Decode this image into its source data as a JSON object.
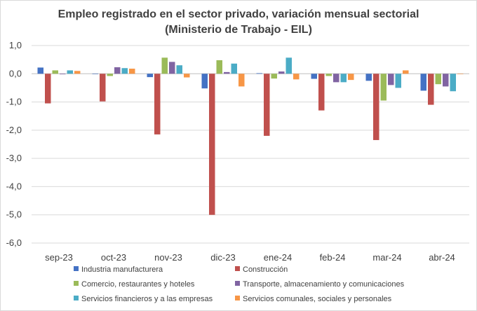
{
  "chart_data": {
    "type": "bar",
    "title": "Empleo registrado en el sector privado, variación mensual sectorial",
    "subtitle": "(Ministerio de Trabajo - EIL)",
    "xlabel": "",
    "ylabel": "",
    "ylim": [
      -6,
      1
    ],
    "yticks": [
      -6,
      -5,
      -4,
      -3,
      -2,
      -1,
      0,
      1
    ],
    "ytick_labels": [
      "-6,0",
      "-5,0",
      "-4,0",
      "-3,0",
      "-2,0",
      "-1,0",
      "0,0",
      "1,0"
    ],
    "grid": true,
    "legend_position": "bottom",
    "categories": [
      "sep-23",
      "oct-23",
      "nov-23",
      "dic-23",
      "ene-24",
      "feb-24",
      "mar-24",
      "abr-24"
    ],
    "series": [
      {
        "name": "Industria manufacturera",
        "color": "#4472C4",
        "values": [
          0.22,
          0.0,
          -0.12,
          -0.52,
          0.02,
          -0.18,
          -0.25,
          -0.6
        ]
      },
      {
        "name": "Construcción",
        "color": "#C0504D",
        "values": [
          -1.05,
          -0.98,
          -2.15,
          -5.0,
          -2.2,
          -1.3,
          -2.35,
          -1.1
        ]
      },
      {
        "name": "Comercio, restaurantes y hoteles",
        "color": "#9BBB59",
        "values": [
          0.12,
          -0.08,
          0.57,
          0.48,
          -0.17,
          -0.08,
          -0.95,
          -0.37
        ]
      },
      {
        "name": "Transporte, almacenamiento y comunicaciones",
        "color": "#8064A2",
        "values": [
          -0.02,
          0.23,
          0.42,
          0.06,
          0.08,
          -0.3,
          -0.4,
          -0.45
        ]
      },
      {
        "name": "Servicios financieros y a las empresas",
        "color": "#4BACC6",
        "values": [
          0.12,
          0.2,
          0.3,
          0.36,
          0.57,
          -0.3,
          -0.5,
          -0.62
        ]
      },
      {
        "name": "Servicios comunales, sociales y personales",
        "color": "#F79646",
        "values": [
          0.1,
          0.18,
          -0.13,
          -0.45,
          -0.2,
          -0.22,
          0.12,
          0.0
        ]
      }
    ]
  }
}
